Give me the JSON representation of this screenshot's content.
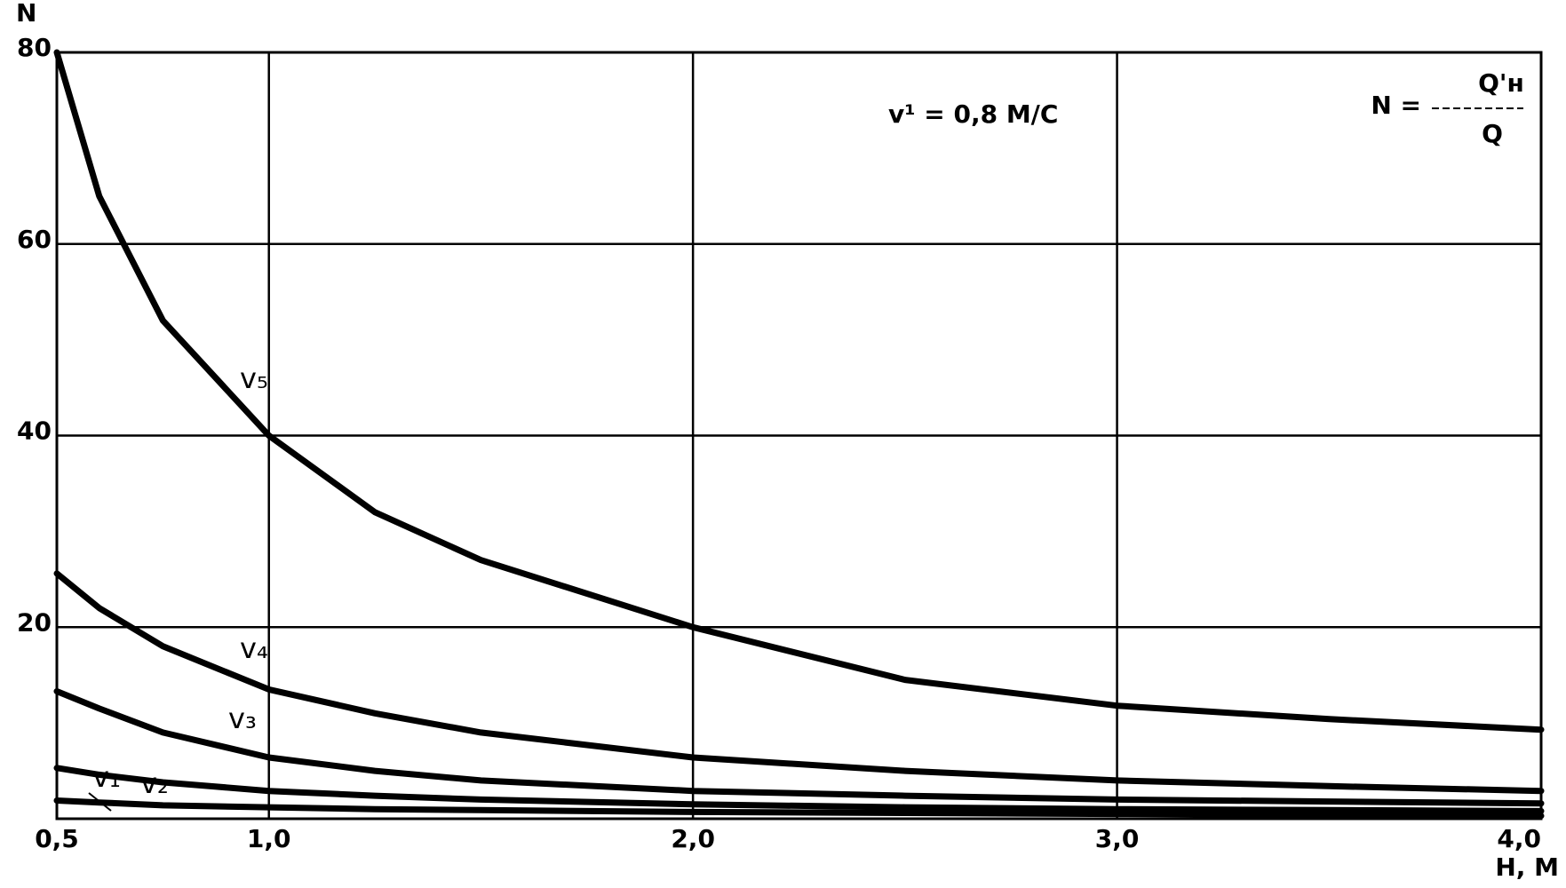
{
  "chart_data": {
    "type": "line",
    "y_axis_label": "N",
    "x_axis_label": "H, M",
    "annotation": "v¹ = 0,8 M/C",
    "formula": {
      "lhs": "N =",
      "numerator": "Q'н",
      "denominator": "Q"
    },
    "x": [
      0.5,
      0.6,
      0.75,
      1.0,
      1.25,
      1.5,
      2.0,
      2.5,
      3.0,
      3.5,
      4.0
    ],
    "series": [
      {
        "name": "v₅",
        "color": "#000000",
        "values": [
          80,
          65,
          52,
          40,
          32,
          27,
          20,
          14.5,
          11.8,
          10.4,
          9.3
        ]
      },
      {
        "name": "v₄",
        "color": "#000000",
        "values": [
          25.6,
          22,
          18,
          13.5,
          11,
          9,
          6.4,
          5,
          4,
          3.4,
          2.9
        ]
      },
      {
        "name": "v₃",
        "color": "#000000",
        "values": [
          13.3,
          11.5,
          9,
          6.4,
          5,
          4,
          2.9,
          2.4,
          2,
          1.8,
          1.6
        ]
      },
      {
        "name": "v₂",
        "color": "#000000",
        "values": [
          5.3,
          4.6,
          3.8,
          2.9,
          2.4,
          2,
          1.5,
          1.2,
          1.0,
          0.9,
          0.8
        ]
      },
      {
        "name": "v₁",
        "color": "#000000",
        "values": [
          1.9,
          1.7,
          1.4,
          1.2,
          1,
          0.9,
          0.7,
          0.6,
          0.5,
          0.4,
          0.3
        ]
      }
    ],
    "xlim": [
      0.5,
      4.0
    ],
    "xticks": [
      {
        "value": 0.5,
        "label": "0,5"
      },
      {
        "value": 1.0,
        "label": "1,0"
      },
      {
        "value": 2.0,
        "label": "2,0"
      },
      {
        "value": 3.0,
        "label": "3,0"
      },
      {
        "value": 4.0,
        "label": "4,0"
      }
    ],
    "ylim": [
      0,
      80
    ],
    "yticks": [
      20,
      40,
      60,
      80
    ],
    "grid": true
  }
}
